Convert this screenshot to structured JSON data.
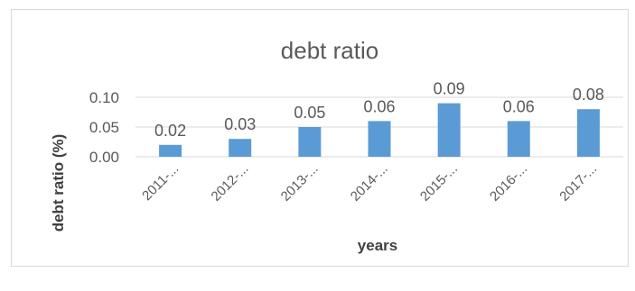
{
  "chart_data": {
    "type": "bar",
    "title": "debt ratio",
    "xlabel": "years",
    "ylabel": "debt ratio (%)",
    "categories": [
      "2011-...",
      "2012-...",
      "2013-...",
      "2014-...",
      "2015-...",
      "2016-...",
      "2017-..."
    ],
    "values": [
      0.02,
      0.03,
      0.05,
      0.06,
      0.09,
      0.06,
      0.08
    ],
    "data_labels": [
      "0.02",
      "0.03",
      "0.05",
      "0.06",
      "0.09",
      "0.06",
      "0.08"
    ],
    "yticks": [
      0.0,
      0.05,
      0.1
    ],
    "ytick_labels": [
      "0.00",
      "0.05",
      "0.10"
    ],
    "ylim": [
      0,
      0.1
    ],
    "grid": true,
    "legend": "none",
    "bar_color": "#5b9bd5",
    "grid_color": "#d9d9d9"
  }
}
